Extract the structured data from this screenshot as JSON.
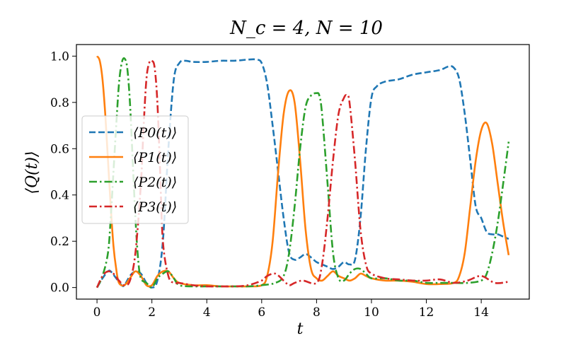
{
  "chart_data": {
    "type": "line",
    "title": "N_c = 4, N = 10",
    "xlabel": "t",
    "ylabel": "⟨Q(t)⟩",
    "xlim": [
      -0.75,
      15.75
    ],
    "ylim": [
      -0.05,
      1.05
    ],
    "xticks": [
      0,
      2,
      4,
      6,
      8,
      10,
      12,
      14
    ],
    "yticks": [
      0.0,
      0.2,
      0.4,
      0.6,
      0.8,
      1.0
    ],
    "xtick_labels": [
      "0",
      "2",
      "4",
      "6",
      "8",
      "10",
      "12",
      "14"
    ],
    "ytick_labels": [
      "0.0",
      "0.2",
      "0.4",
      "0.6",
      "0.8",
      "1.0"
    ],
    "grid": false,
    "legend_position": "center-left",
    "series": [
      {
        "name": "⟨P0(t)⟩",
        "color": "#1f77b4",
        "dash": "dashed",
        "x": [
          0,
          0.2,
          0.4,
          0.5,
          0.7,
          0.9,
          1.0,
          1.2,
          1.4,
          1.6,
          1.8,
          2.0,
          2.2,
          2.4,
          2.6,
          2.8,
          3.0,
          3.2,
          3.5,
          4.0,
          4.5,
          5.0,
          5.5,
          5.8,
          6.0,
          6.2,
          6.4,
          6.6,
          6.8,
          7.0,
          7.2,
          7.4,
          7.6,
          7.8,
          8.0,
          8.2,
          8.4,
          8.6,
          8.8,
          9.0,
          9.2,
          9.4,
          9.6,
          9.8,
          10.0,
          10.2,
          10.5,
          11.0,
          11.5,
          12.0,
          12.5,
          12.8,
          13.0,
          13.2,
          13.4,
          13.6,
          13.8,
          14.0,
          14.2,
          14.4,
          14.6,
          14.8,
          15.0
        ],
        "y": [
          0.0,
          0.04,
          0.07,
          0.07,
          0.04,
          0.01,
          0.01,
          0.05,
          0.07,
          0.06,
          0.02,
          0.0,
          0.03,
          0.2,
          0.6,
          0.9,
          0.97,
          0.98,
          0.975,
          0.975,
          0.98,
          0.98,
          0.985,
          0.985,
          0.97,
          0.88,
          0.7,
          0.5,
          0.3,
          0.15,
          0.12,
          0.13,
          0.145,
          0.13,
          0.11,
          0.1,
          0.09,
          0.08,
          0.09,
          0.11,
          0.1,
          0.12,
          0.3,
          0.6,
          0.82,
          0.87,
          0.89,
          0.9,
          0.92,
          0.93,
          0.94,
          0.955,
          0.95,
          0.9,
          0.75,
          0.55,
          0.35,
          0.3,
          0.24,
          0.23,
          0.23,
          0.22,
          0.21
        ]
      },
      {
        "name": "⟨P1(t)⟩",
        "color": "#ff7f0e",
        "dash": "solid",
        "x": [
          0,
          0.1,
          0.2,
          0.3,
          0.4,
          0.5,
          0.6,
          0.7,
          0.8,
          1.0,
          1.2,
          1.4,
          1.6,
          1.8,
          2.0,
          2.2,
          2.4,
          2.6,
          2.8,
          3.0,
          3.5,
          4.0,
          4.5,
          5.0,
          5.5,
          6.0,
          6.2,
          6.4,
          6.6,
          6.8,
          7.0,
          7.2,
          7.4,
          7.6,
          7.8,
          8.0,
          8.2,
          8.4,
          8.6,
          8.8,
          9.0,
          9.2,
          9.4,
          9.6,
          9.8,
          10.0,
          10.5,
          11.0,
          11.5,
          12.0,
          12.5,
          13.0,
          13.2,
          13.4,
          13.6,
          13.8,
          14.0,
          14.2,
          14.4,
          14.6,
          14.8,
          15.0
        ],
        "y": [
          1.0,
          0.98,
          0.9,
          0.75,
          0.55,
          0.35,
          0.18,
          0.08,
          0.02,
          0.01,
          0.04,
          0.07,
          0.05,
          0.01,
          0.01,
          0.05,
          0.07,
          0.07,
          0.04,
          0.02,
          0.01,
          0.01,
          0.005,
          0.005,
          0.005,
          0.01,
          0.05,
          0.2,
          0.5,
          0.75,
          0.85,
          0.8,
          0.55,
          0.25,
          0.08,
          0.04,
          0.03,
          0.05,
          0.07,
          0.05,
          0.04,
          0.03,
          0.04,
          0.06,
          0.05,
          0.04,
          0.03,
          0.03,
          0.025,
          0.015,
          0.015,
          0.02,
          0.05,
          0.15,
          0.35,
          0.55,
          0.68,
          0.71,
          0.62,
          0.45,
          0.28,
          0.14
        ]
      },
      {
        "name": "⟨P2(t)⟩",
        "color": "#2ca02c",
        "dash": "dashdot",
        "x": [
          0,
          0.2,
          0.4,
          0.5,
          0.6,
          0.7,
          0.8,
          0.9,
          1.0,
          1.1,
          1.2,
          1.3,
          1.4,
          1.5,
          1.6,
          1.8,
          2.0,
          2.2,
          2.4,
          2.6,
          2.8,
          3.0,
          3.5,
          4.0,
          4.5,
          5.0,
          5.5,
          6.0,
          6.5,
          6.8,
          7.0,
          7.2,
          7.4,
          7.6,
          7.8,
          8.0,
          8.1,
          8.2,
          8.4,
          8.6,
          8.8,
          9.0,
          9.2,
          9.4,
          9.6,
          9.8,
          10.0,
          10.5,
          11.0,
          11.5,
          12.0,
          12.5,
          13.0,
          13.5,
          14.0,
          14.2,
          14.4,
          14.6,
          14.8,
          15.0
        ],
        "y": [
          0.0,
          0.05,
          0.15,
          0.3,
          0.5,
          0.7,
          0.88,
          0.97,
          0.99,
          0.95,
          0.8,
          0.55,
          0.3,
          0.12,
          0.04,
          0.02,
          0.0,
          0.04,
          0.06,
          0.07,
          0.04,
          0.01,
          0.005,
          0.005,
          0.005,
          0.005,
          0.005,
          0.01,
          0.02,
          0.05,
          0.15,
          0.35,
          0.6,
          0.78,
          0.83,
          0.84,
          0.83,
          0.75,
          0.45,
          0.15,
          0.04,
          0.03,
          0.06,
          0.08,
          0.08,
          0.06,
          0.04,
          0.04,
          0.03,
          0.03,
          0.02,
          0.02,
          0.02,
          0.02,
          0.03,
          0.06,
          0.15,
          0.28,
          0.45,
          0.63
        ]
      },
      {
        "name": "⟨P3(t)⟩",
        "color": "#d62728",
        "dash": "dashdot",
        "x": [
          0,
          0.2,
          0.4,
          0.6,
          0.8,
          1.0,
          1.2,
          1.4,
          1.6,
          1.7,
          1.8,
          1.9,
          2.0,
          2.1,
          2.2,
          2.3,
          2.4,
          2.6,
          2.8,
          3.0,
          3.5,
          4.0,
          4.5,
          5.0,
          5.5,
          6.0,
          6.2,
          6.5,
          6.8,
          7.0,
          7.2,
          7.5,
          8.0,
          8.2,
          8.4,
          8.6,
          8.8,
          9.0,
          9.1,
          9.2,
          9.4,
          9.6,
          9.8,
          10.0,
          10.5,
          11.0,
          11.5,
          12.0,
          12.5,
          13.0,
          13.5,
          14.0,
          14.5,
          15.0
        ],
        "y": [
          0.0,
          0.05,
          0.07,
          0.06,
          0.03,
          0.01,
          0.03,
          0.15,
          0.45,
          0.7,
          0.9,
          0.97,
          0.98,
          0.95,
          0.8,
          0.5,
          0.2,
          0.05,
          0.02,
          0.02,
          0.01,
          0.005,
          0.005,
          0.005,
          0.01,
          0.03,
          0.05,
          0.06,
          0.03,
          0.01,
          0.02,
          0.03,
          0.02,
          0.1,
          0.3,
          0.55,
          0.75,
          0.82,
          0.83,
          0.8,
          0.55,
          0.25,
          0.1,
          0.06,
          0.04,
          0.035,
          0.03,
          0.03,
          0.035,
          0.02,
          0.03,
          0.05,
          0.02,
          0.025
        ]
      }
    ]
  }
}
